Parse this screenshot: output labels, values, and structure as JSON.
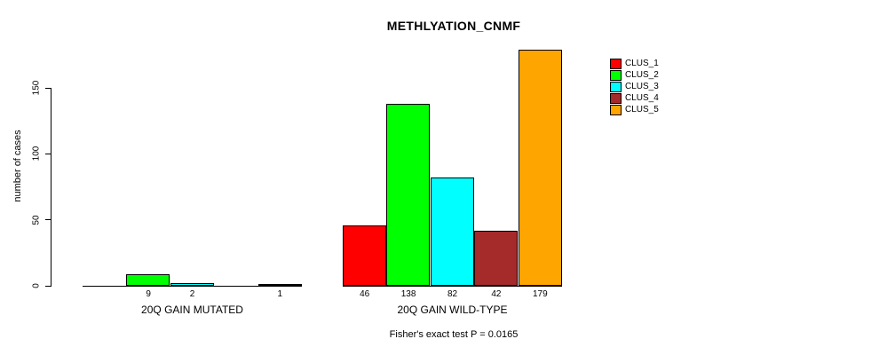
{
  "chart_data": {
    "type": "bar",
    "title": "METHLYATION_CNMF",
    "ylabel": "number of cases",
    "yticks": [
      0,
      50,
      100,
      150
    ],
    "ylim": [
      0,
      185
    ],
    "grid": false,
    "legend_position": "top-right",
    "categories": [
      "20Q GAIN MUTATED",
      "20Q GAIN WILD-TYPE"
    ],
    "series": [
      {
        "name": "CLUS_1",
        "color": "#FF0000",
        "values": [
          0,
          46
        ]
      },
      {
        "name": "CLUS_2",
        "color": "#00FF00",
        "values": [
          9,
          138
        ]
      },
      {
        "name": "CLUS_3",
        "color": "#00FFFF",
        "values": [
          2,
          82
        ]
      },
      {
        "name": "CLUS_4",
        "color": "#A52A2A",
        "values": [
          0,
          42
        ]
      },
      {
        "name": "CLUS_5",
        "color": "#FFA500",
        "values": [
          1,
          179
        ]
      }
    ],
    "bar_value_labels_shown": [
      [
        null,
        9,
        2,
        null,
        1
      ],
      [
        46,
        138,
        82,
        42,
        179
      ]
    ],
    "annotation": "Fisher's exact test P = 0.0165"
  }
}
